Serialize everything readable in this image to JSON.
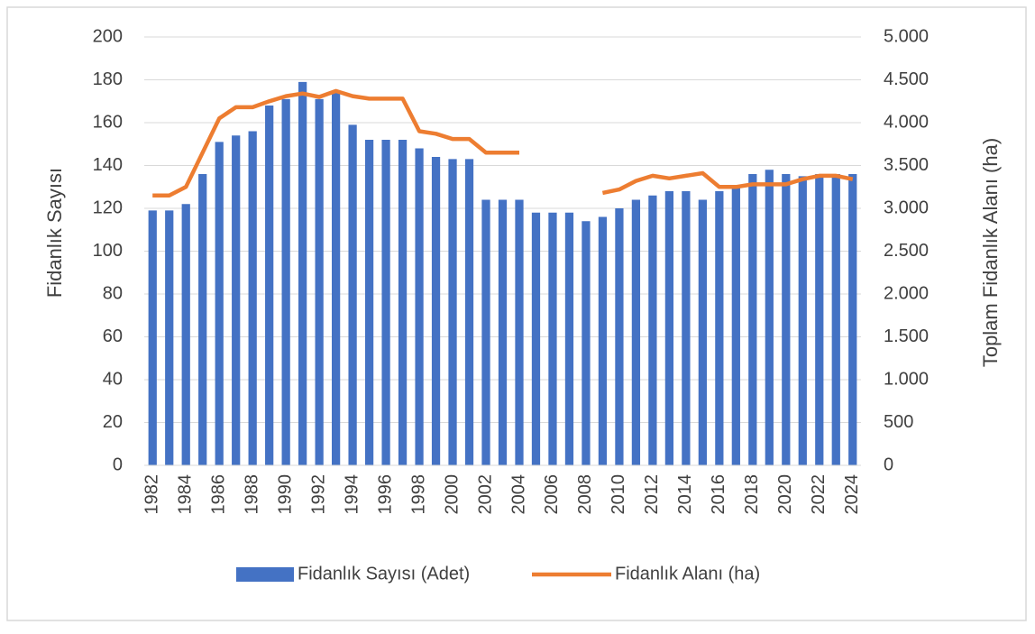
{
  "chart_data": {
    "type": "bar_line",
    "categories": [
      "1982",
      null,
      "1984",
      null,
      "1986",
      null,
      "1988",
      null,
      "1990",
      null,
      "1992",
      null,
      "1994",
      null,
      "1996",
      null,
      "1998",
      null,
      "2000",
      null,
      "2002",
      null,
      "2004",
      null,
      "2006",
      null,
      "2008",
      null,
      "2010",
      null,
      "2012",
      null,
      "2014",
      null,
      "2016",
      null,
      "2018",
      null,
      "2020",
      null,
      "2022",
      null,
      "2024"
    ],
    "series": [
      {
        "name": "Fidanlık Sayısı (Adet)",
        "type": "bar",
        "color": "#4472c4",
        "values": [
          119,
          119,
          122,
          136,
          151,
          154,
          156,
          168,
          171,
          179,
          171,
          174,
          159,
          152,
          152,
          152,
          148,
          144,
          143,
          143,
          124,
          124,
          124,
          118,
          118,
          118,
          114,
          116,
          120,
          124,
          126,
          128,
          128,
          124,
          128,
          130,
          136,
          138,
          136,
          135,
          136,
          136,
          136
        ]
      },
      {
        "name": "Fidanlık Alanı (ha)",
        "type": "line",
        "axis": "y2",
        "color": "#ed7d31",
        "values": [
          3150,
          3150,
          3250,
          3650,
          4050,
          4180,
          4180,
          4250,
          4310,
          4340,
          4300,
          4370,
          4310,
          4280,
          4280,
          4280,
          3900,
          3870,
          3810,
          3810,
          3650,
          3650,
          3650,
          null,
          null,
          null,
          null,
          3180,
          3220,
          3320,
          3380,
          3350,
          3380,
          3410,
          3250,
          3250,
          3280,
          3280,
          3280,
          3340,
          3380,
          3380,
          3340
        ]
      }
    ],
    "ylabel": "Fidanlık Sayısı",
    "y2label": "Toplam Fidanlık Alanı (ha)",
    "ylim": [
      0,
      200
    ],
    "yticks": [
      0,
      20,
      40,
      60,
      80,
      100,
      120,
      140,
      160,
      180,
      200
    ],
    "y2lim": [
      0,
      5000
    ],
    "y2ticks": [
      0,
      500,
      {
        "value": 1000,
        "label": "1.000"
      },
      {
        "value": 1500,
        "label": "1.500"
      },
      {
        "value": 2000,
        "label": "2.000"
      },
      {
        "value": 2500,
        "label": "2.500"
      },
      {
        "value": 3000,
        "label": "3.000"
      },
      {
        "value": 3500,
        "label": "3.500"
      },
      {
        "value": 4000,
        "label": "4.000"
      },
      {
        "value": 4500,
        "label": "4.500"
      },
      {
        "value": 5000,
        "label": "5.000"
      }
    ],
    "grid": true,
    "legend": "bottom"
  }
}
